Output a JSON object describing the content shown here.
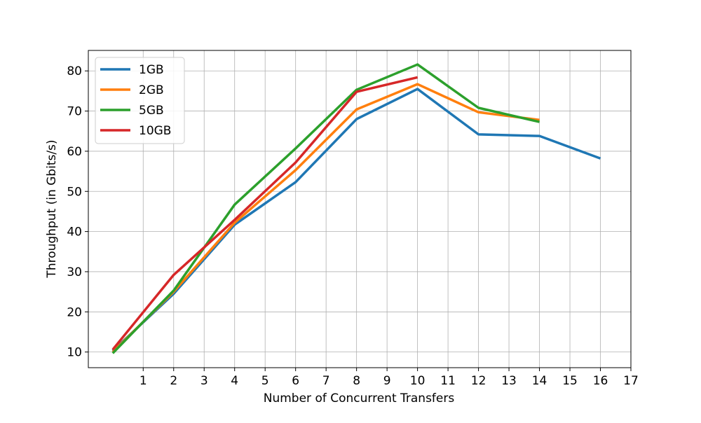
{
  "chart_data": {
    "type": "line",
    "x_label": "Number of Concurrent Transfers",
    "y_label": "Throughput (in Gbits/s)",
    "x": [
      0,
      2,
      4,
      6,
      8,
      10,
      12,
      14,
      16
    ],
    "series": [
      {
        "name": "1GB",
        "color": "#1f77b4",
        "values": [
          10.3,
          24.5,
          41.7,
          52.3,
          68.0,
          75.5,
          64.2,
          63.8,
          58.2
        ]
      },
      {
        "name": "2GB",
        "color": "#ff7f0e",
        "values": [
          10.0,
          25.0,
          42.2,
          55.3,
          70.4,
          76.7,
          69.7,
          67.8,
          null
        ]
      },
      {
        "name": "5GB",
        "color": "#2ca02c",
        "values": [
          9.7,
          25.3,
          46.7,
          60.7,
          75.3,
          81.6,
          70.8,
          67.3,
          null
        ]
      },
      {
        "name": "10GB",
        "color": "#d62728",
        "values": [
          10.6,
          29.2,
          42.9,
          57.2,
          74.8,
          78.4,
          null,
          null,
          null
        ]
      }
    ],
    "xlim": [
      -0.8,
      17
    ],
    "xticks": [
      1,
      2,
      3,
      4,
      5,
      6,
      7,
      8,
      9,
      10,
      11,
      12,
      13,
      14,
      15,
      16,
      17
    ],
    "ylim": [
      6.1,
      85.1
    ],
    "yticks": [
      10,
      20,
      30,
      40,
      50,
      60,
      70,
      80
    ],
    "grid": true,
    "legend": "upper-left"
  }
}
